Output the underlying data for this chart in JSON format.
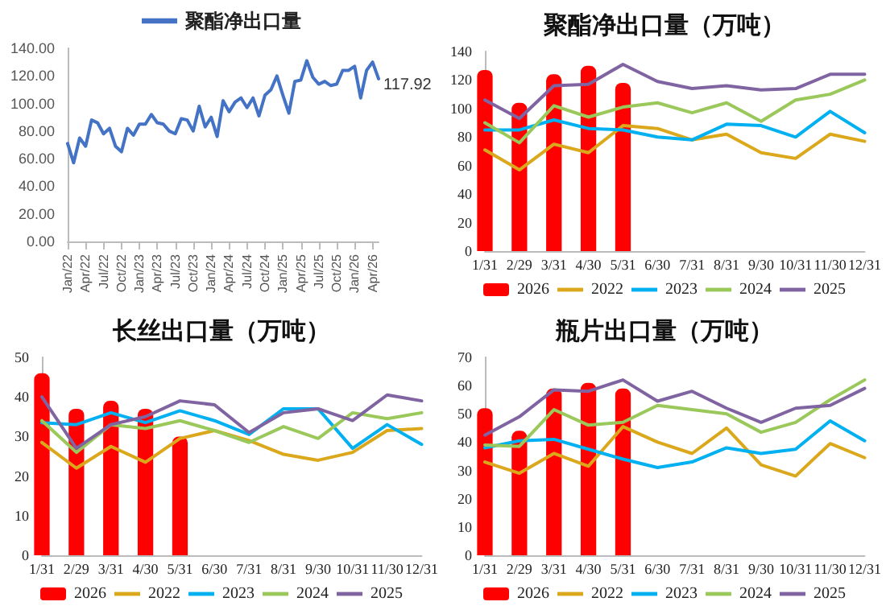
{
  "chart_data": [
    {
      "type": "line",
      "legend": "top",
      "marker": "none",
      "line_style": "solid",
      "categories": [
        "Jan/22",
        null,
        null,
        "Apr/22",
        null,
        null,
        "Jul/22",
        null,
        null,
        "Oct/22",
        null,
        null,
        "Jan/23",
        null,
        null,
        "Apr/23",
        null,
        null,
        "Jul/23",
        null,
        null,
        "Oct/23",
        null,
        null,
        "Jan/24",
        null,
        null,
        "Apr/24",
        null,
        null,
        "Jul/24",
        null,
        null,
        "Oct/24",
        null,
        null,
        "Jan/25",
        null,
        null,
        "Apr/25",
        null,
        null,
        "Jul/25",
        null,
        null,
        "Oct/25",
        null,
        null,
        "Jan/26",
        null,
        null,
        "Apr/26",
        null
      ],
      "series": [
        {
          "name": "聚酯净出口量",
          "color": "#4472c4",
          "values": [
            71,
            57,
            75,
            69,
            88,
            86,
            78,
            82,
            69,
            65,
            82,
            77,
            85,
            85,
            92,
            86,
            85,
            80,
            78,
            89,
            88,
            80,
            98,
            83,
            90,
            76,
            102,
            94,
            101,
            104,
            97,
            104,
            91,
            106,
            110,
            120,
            106,
            93,
            116,
            117,
            131,
            119,
            114,
            116,
            113,
            114,
            124,
            124,
            127,
            104,
            124,
            130,
            117.92
          ],
          "value_labels": [
            null,
            null,
            null,
            null,
            null,
            null,
            null,
            null,
            null,
            null,
            null,
            null,
            null,
            null,
            null,
            null,
            null,
            null,
            null,
            null,
            null,
            null,
            null,
            null,
            null,
            null,
            null,
            null,
            null,
            null,
            null,
            null,
            null,
            null,
            null,
            null,
            null,
            null,
            null,
            null,
            null,
            null,
            null,
            null,
            null,
            null,
            null,
            null,
            null,
            null,
            null,
            null,
            "117.92"
          ]
        }
      ],
      "ylim": [
        0,
        140
      ],
      "yticks": [
        {
          "value": 0,
          "label": "0.00"
        },
        {
          "value": 20,
          "label": "20.00"
        },
        {
          "value": 40,
          "label": "40.00"
        },
        {
          "value": 60,
          "label": "60.00"
        },
        {
          "value": 80,
          "label": "80.00"
        },
        {
          "value": 100,
          "label": "100.00"
        },
        {
          "value": 120,
          "label": "120.00"
        },
        {
          "value": 140,
          "label": "140.00"
        }
      ]
    },
    {
      "type": "line",
      "title": "聚酯净出口量（万吨）",
      "legend": "bottom",
      "marker": "none",
      "line_style": "solid",
      "categories": [
        "1/31",
        "2/29",
        "3/31",
        "4/30",
        "5/31",
        "6/30",
        "7/31",
        "8/31",
        "9/30",
        "10/31",
        "11/30",
        "12/31"
      ],
      "series": [
        {
          "name": "2026",
          "type": "bar",
          "color": "#ff0000",
          "values": [
            127,
            104,
            124,
            130,
            118,
            null,
            null,
            null,
            null,
            null,
            null,
            null
          ]
        },
        {
          "name": "2022",
          "color": "#dba81c",
          "values": [
            71,
            57,
            75,
            69,
            88,
            86,
            78,
            82,
            69,
            65,
            82,
            77
          ]
        },
        {
          "name": "2023",
          "color": "#00b0f0",
          "values": [
            85,
            85,
            92,
            86,
            85,
            80,
            78,
            89,
            88,
            80,
            98,
            83
          ]
        },
        {
          "name": "2024",
          "color": "#9bc85a",
          "values": [
            90,
            76,
            102,
            94,
            101,
            104,
            97,
            104,
            91,
            106,
            110,
            120
          ]
        },
        {
          "name": "2025",
          "color": "#8064a2",
          "values": [
            106,
            93,
            116,
            117,
            131,
            119,
            114,
            116,
            113,
            114,
            124,
            124
          ]
        }
      ],
      "ylim": [
        0,
        140
      ],
      "yticks": [
        0,
        20,
        40,
        60,
        80,
        100,
        120,
        140
      ]
    },
    {
      "type": "line",
      "title": "长丝出口量（万吨）",
      "legend": "bottom",
      "marker": "none",
      "line_style": "solid",
      "categories": [
        "1/31",
        "2/29",
        "3/31",
        "4/30",
        "5/31",
        "6/30",
        "7/31",
        "8/31",
        "9/30",
        "10/31",
        "11/30",
        "12/31"
      ],
      "series": [
        {
          "name": "2026",
          "type": "bar",
          "color": "#ff0000",
          "values": [
            46,
            37,
            39,
            37,
            30,
            null,
            null,
            null,
            null,
            null,
            null,
            null
          ]
        },
        {
          "name": "2022",
          "color": "#dba81c",
          "values": [
            28.5,
            22,
            27.5,
            23.5,
            29.5,
            31.5,
            29,
            25.5,
            24,
            26,
            31.5,
            32
          ]
        },
        {
          "name": "2023",
          "color": "#00b0f0",
          "values": [
            33.5,
            33,
            36,
            33.5,
            36.5,
            34,
            30.5,
            37,
            37,
            27,
            33,
            28
          ]
        },
        {
          "name": "2024",
          "color": "#9bc85a",
          "values": [
            34,
            26,
            33,
            32,
            34,
            31.5,
            28.5,
            32.5,
            29.5,
            36,
            34.5,
            36
          ]
        },
        {
          "name": "2025",
          "color": "#8064a2",
          "values": [
            40,
            27,
            33,
            35,
            39,
            38,
            31,
            36,
            37,
            34,
            40.5,
            39
          ]
        }
      ],
      "ylim": [
        0,
        50
      ],
      "yticks": [
        0,
        10,
        20,
        30,
        40,
        50
      ]
    },
    {
      "type": "line",
      "title": "瓶片出口量（万吨）",
      "legend": "bottom",
      "marker": "none",
      "line_style": "solid",
      "categories": [
        "1/31",
        "2/29",
        "3/31",
        "4/30",
        "5/31",
        "6/30",
        "7/31",
        "8/31",
        "9/30",
        "10/31",
        "11/30",
        "12/31"
      ],
      "series": [
        {
          "name": "2026",
          "type": "bar",
          "color": "#ff0000",
          "values": [
            52,
            44,
            59,
            61,
            59,
            null,
            null,
            null,
            null,
            null,
            null,
            null
          ]
        },
        {
          "name": "2022",
          "color": "#dba81c",
          "values": [
            33,
            29,
            36,
            31.5,
            45.5,
            40,
            36,
            45,
            32,
            28,
            39.5,
            34.5
          ]
        },
        {
          "name": "2023",
          "color": "#00b0f0",
          "values": [
            38,
            40.5,
            41,
            37.5,
            34,
            31,
            33,
            38,
            36,
            37.5,
            47.5,
            40.5
          ]
        },
        {
          "name": "2024",
          "color": "#9bc85a",
          "values": [
            39,
            38.5,
            51.5,
            46,
            47,
            53,
            51.5,
            50,
            43.5,
            47,
            55,
            62
          ]
        },
        {
          "name": "2025",
          "color": "#8064a2",
          "values": [
            42.5,
            49,
            58.5,
            58,
            62,
            54.5,
            58,
            52,
            47,
            52,
            53,
            59
          ]
        }
      ],
      "ylim": [
        0,
        70
      ],
      "yticks": [
        0,
        10,
        20,
        30,
        40,
        50,
        60,
        70
      ]
    }
  ]
}
